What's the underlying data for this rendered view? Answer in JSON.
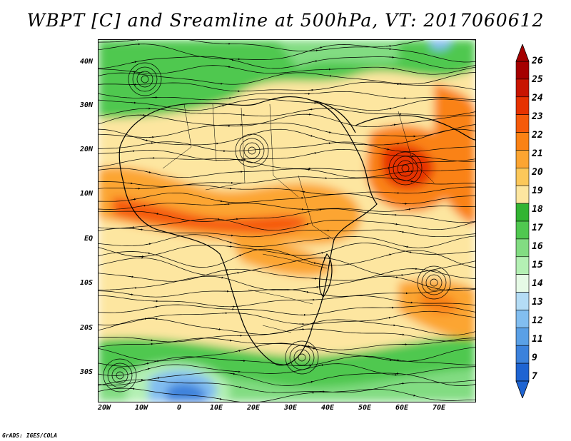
{
  "title": "WBPT [C] and Sreamline at 500hPa, VT: 2017060612",
  "credit": "GrADS: IGES/COLA",
  "map": {
    "lon_range": [
      -20,
      80
    ],
    "lat_range": [
      -36,
      45
    ],
    "lat_ticks": [
      "40N",
      "30N",
      "20N",
      "10N",
      "EQ",
      "10S",
      "20S",
      "30S"
    ],
    "lon_ticks": [
      "20W",
      "10W",
      "0",
      "10E",
      "20E",
      "30E",
      "40E",
      "50E",
      "60E",
      "70E"
    ]
  },
  "colorbar": {
    "labels": [
      "26",
      "25",
      "24",
      "23",
      "22",
      "21",
      "20",
      "19",
      "18",
      "17",
      "16",
      "15",
      "14",
      "13",
      "12",
      "11",
      "9",
      "7"
    ],
    "colors": [
      "#a50000",
      "#c81400",
      "#e63200",
      "#f55a0a",
      "#fa8214",
      "#fca532",
      "#fcc85a",
      "#fde6a0",
      "#32b432",
      "#50c850",
      "#82dc82",
      "#b4f0b4",
      "#e6fae6",
      "#b4dcf5",
      "#82bef0",
      "#5aa0e6",
      "#3c82dc",
      "#1e64d2"
    ]
  }
}
